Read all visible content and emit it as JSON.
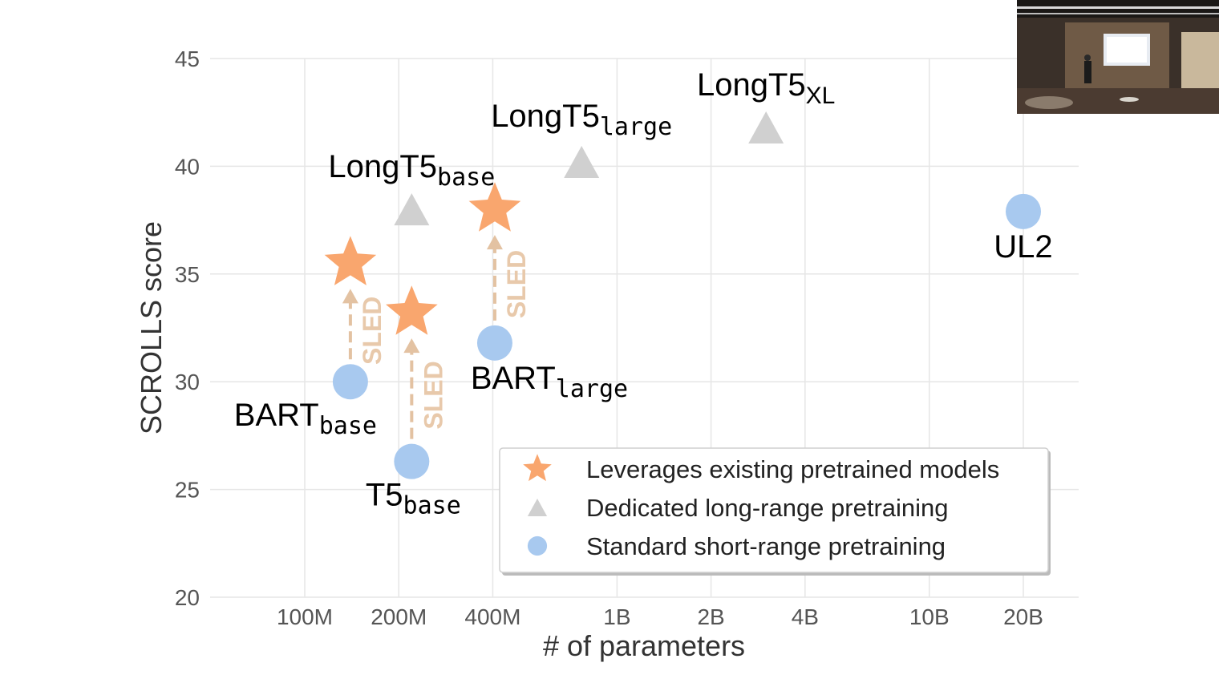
{
  "chart_data": {
    "type": "scatter",
    "xlabel": "# of parameters",
    "ylabel": "SCROLLS score",
    "xscale": "log",
    "xlim": [
      "65M",
      "28B"
    ],
    "ylim": [
      20,
      45
    ],
    "yticks": [
      20,
      25,
      30,
      35,
      40,
      45
    ],
    "xticks": [
      {
        "value": 100000000,
        "label": "100M"
      },
      {
        "value": 200000000,
        "label": "200M"
      },
      {
        "value": 400000000,
        "label": "400M"
      },
      {
        "value": 1000000000,
        "label": "1B"
      },
      {
        "value": 2000000000,
        "label": "2B"
      },
      {
        "value": 4000000000,
        "label": "4B"
      },
      {
        "value": 10000000000,
        "label": "10B"
      },
      {
        "value": 20000000000,
        "label": "20B"
      }
    ],
    "grid": true,
    "legend_position": "bottom-right",
    "series": [
      {
        "name": "Leverages existing pretrained models",
        "marker": "star",
        "color": "#f9a66e",
        "points": [
          {
            "x": 140000000,
            "y": 35.5
          },
          {
            "x": 220000000,
            "y": 33.2
          },
          {
            "x": 406000000,
            "y": 38.0
          }
        ]
      },
      {
        "name": "Dedicated long-range pretraining",
        "marker": "triangle",
        "color": "#d0d0d0",
        "points": [
          {
            "x": 220000000,
            "y": 38.0,
            "label": "LongT5",
            "sub": "base",
            "sub_mono": true
          },
          {
            "x": 770000000,
            "y": 40.2,
            "label": "LongT5",
            "sub": "large",
            "sub_mono": true
          },
          {
            "x": 3000000000,
            "y": 41.8,
            "label": "LongT5",
            "sub": "XL",
            "sub_mono": false
          }
        ]
      },
      {
        "name": "Standard short-range pretraining",
        "marker": "circle",
        "color": "#a8c9ef",
        "points": [
          {
            "x": 140000000,
            "y": 30.0,
            "label": "BART",
            "sub": "base",
            "sub_mono": true
          },
          {
            "x": 220000000,
            "y": 26.3,
            "label": "T5",
            "sub": "base",
            "sub_mono": true
          },
          {
            "x": 406000000,
            "y": 31.8,
            "label": "BART",
            "sub": "large",
            "sub_mono": true
          },
          {
            "x": 20000000000,
            "y": 37.9,
            "label": "UL2",
            "sub": "",
            "sub_mono": false
          }
        ]
      }
    ],
    "arrows": [
      {
        "text": "SLED",
        "x": 140000000,
        "y_from": 30.0,
        "y_to": 35.5
      },
      {
        "text": "SLED",
        "x": 220000000,
        "y_from": 26.3,
        "y_to": 33.2
      },
      {
        "text": "SLED",
        "x": 406000000,
        "y_from": 31.8,
        "y_to": 38.0
      }
    ]
  },
  "video_inset": {
    "description_icon": "speaker-video-thumbnail"
  }
}
